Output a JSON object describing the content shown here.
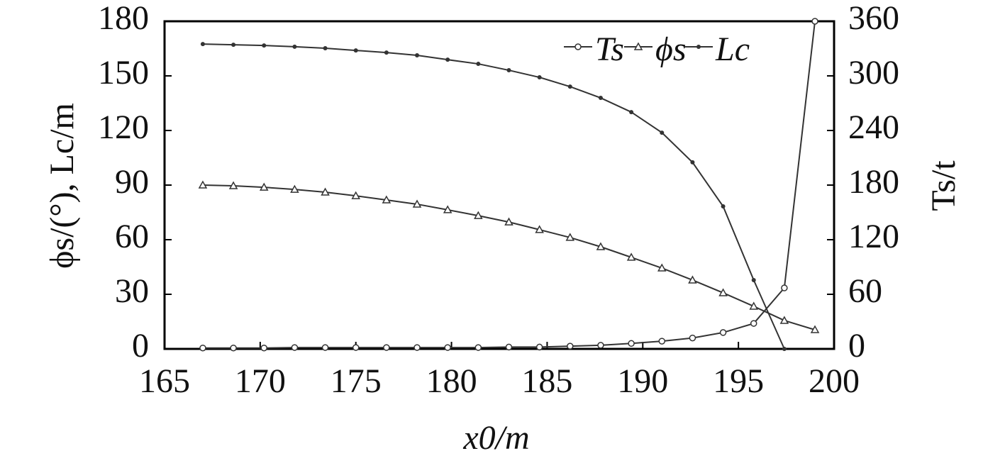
{
  "chart_data": {
    "type": "line",
    "xlabel": "x0/m",
    "ylabel": "ϕs/(°), Lc/m",
    "y2label": "Ts/t",
    "x": [
      167,
      168.6,
      170.2,
      171.8,
      173.4,
      175,
      176.6,
      178.2,
      179.8,
      181.4,
      183,
      184.6,
      186.2,
      187.8,
      189.4,
      191,
      192.6,
      194.2,
      195.8,
      197.4,
      199
    ],
    "series": [
      {
        "name": "Ts",
        "color": "#333333",
        "marker": "circle",
        "axis": "y2",
        "values": [
          1,
          1,
          1,
          1.5,
          1.5,
          1.5,
          1.5,
          1.5,
          1.5,
          1.5,
          2,
          2,
          3,
          4,
          6,
          8.5,
          12,
          18,
          28,
          67,
          360
        ]
      },
      {
        "name": "ϕs",
        "color": "#333333",
        "marker": "triangle",
        "values": [
          90,
          89.6,
          88.8,
          87.6,
          86.1,
          84.1,
          81.8,
          79.5,
          76.4,
          73.2,
          69.7,
          65.5,
          61.2,
          56.1,
          50.3,
          44.4,
          37.8,
          30.8,
          23.4,
          15.6,
          10.5
        ]
      },
      {
        "name": "Lc",
        "color": "#333333",
        "marker": "dot",
        "values": [
          167.5,
          167.1,
          166.7,
          166,
          165.2,
          164,
          162.8,
          161.3,
          158.9,
          156.6,
          153.1,
          149.2,
          144.1,
          137.9,
          130.1,
          118.8,
          102.5,
          78.3,
          37.8,
          0,
          null
        ]
      }
    ],
    "xlim": [
      165,
      200
    ],
    "xticks": [
      165,
      170,
      175,
      180,
      185,
      190,
      195,
      200
    ],
    "ylim": [
      0,
      180
    ],
    "yticks": [
      0,
      30,
      60,
      90,
      120,
      150,
      180
    ],
    "y2lim": [
      0,
      360
    ],
    "y2ticks": [
      0,
      60,
      120,
      180,
      240,
      300,
      360
    ],
    "legend": "upper right"
  }
}
